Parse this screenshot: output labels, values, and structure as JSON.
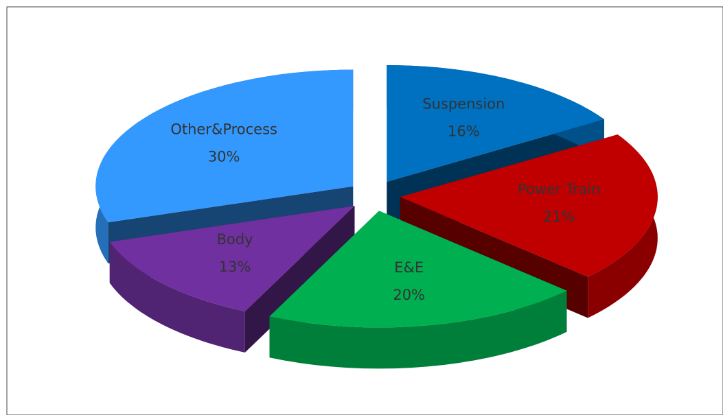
{
  "chart_data": {
    "type": "pie3d",
    "categories": [
      "Suspension",
      "Power Train",
      "E&E",
      "Body",
      "Other&Process"
    ],
    "values": [
      16,
      21,
      20,
      13,
      30
    ],
    "value_labels": [
      "16%",
      "21%",
      "20%",
      "13%",
      "30%"
    ],
    "colors": [
      "#0070c0",
      "#c00000",
      "#00b050",
      "#7030a0",
      "#3399ff"
    ]
  }
}
